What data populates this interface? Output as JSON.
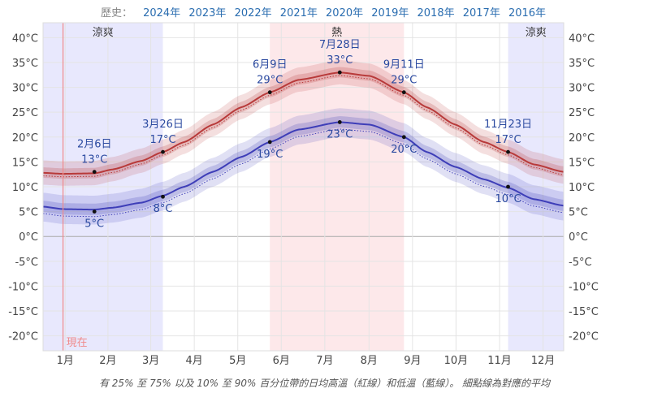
{
  "history": {
    "label": "歷史：",
    "years": [
      "2024年",
      "2023年",
      "2022年",
      "2021年",
      "2020年",
      "2019年",
      "2018年",
      "2017年",
      "2016年"
    ]
  },
  "caption": "有 25% 至 75% 以及 10% 至 90% 百分位帶的日均高溫（紅線）和低溫（藍線）。 細點線為對應的平均",
  "colors": {
    "high": "#b83a3a",
    "low": "#3e3eb8",
    "hot_band": "#fde8ea",
    "cool_band": "#e8e8fd",
    "today": "#f08a8a"
  },
  "chart_data": {
    "type": "line",
    "x_unit": "day_of_year",
    "y_unit": "°C",
    "ylim": [
      -23,
      43
    ],
    "xlim": [
      1,
      366
    ],
    "y_ticks": [
      40,
      35,
      30,
      25,
      20,
      15,
      10,
      5,
      0,
      -5,
      -10,
      -15,
      -20
    ],
    "y_tick_labels": [
      "40°C",
      "35°C",
      "30°C",
      "25°C",
      "20°C",
      "15°C",
      "10°C",
      "5°C",
      "0°C",
      "-5°C",
      "-10°C",
      "-15°C",
      "-20°C"
    ],
    "months": [
      "1月",
      "2月",
      "3月",
      "4月",
      "5月",
      "6月",
      "7月",
      "8月",
      "9月",
      "10月",
      "11月",
      "12月"
    ],
    "grid": true,
    "seasons": [
      {
        "label": "涼爽",
        "kind": "cool",
        "start": 1,
        "end": 85
      },
      {
        "label": "熱",
        "kind": "hot",
        "start": 160,
        "end": 254
      },
      {
        "label": "涼爽",
        "kind": "cool",
        "start": 327,
        "end": 366
      }
    ],
    "today": {
      "label": "現在",
      "day": 15
    },
    "series": [
      {
        "key": "high",
        "days": [
          1,
          15,
          37,
          50,
          70,
          85,
          100,
          120,
          140,
          160,
          180,
          209,
          230,
          254,
          270,
          290,
          310,
          327,
          345,
          366
        ],
        "values": [
          12.8,
          12.6,
          12.7,
          13.5,
          15.2,
          17.0,
          19.0,
          22.5,
          26.0,
          29.0,
          31.5,
          33.0,
          32.3,
          29.0,
          26.0,
          22.5,
          19.0,
          17.0,
          14.5,
          13.0
        ],
        "p25": [
          11.8,
          11.6,
          11.7,
          12.5,
          14.2,
          16.0,
          18.0,
          21.5,
          25.0,
          28.0,
          30.5,
          32.0,
          31.3,
          28.0,
          25.0,
          21.5,
          18.0,
          16.0,
          13.5,
          12.0
        ],
        "p75": [
          13.9,
          13.7,
          13.8,
          14.6,
          16.3,
          18.1,
          20.1,
          23.6,
          27.1,
          30.1,
          32.6,
          34.1,
          33.4,
          30.1,
          27.1,
          23.6,
          20.1,
          18.1,
          15.6,
          14.1
        ],
        "p10": [
          10.4,
          10.2,
          10.3,
          11.1,
          12.8,
          14.6,
          16.6,
          20.1,
          23.6,
          26.6,
          29.1,
          30.6,
          29.9,
          26.6,
          23.6,
          20.1,
          16.6,
          14.6,
          12.1,
          10.6
        ],
        "p90": [
          15.3,
          15.1,
          15.2,
          16.0,
          17.7,
          19.5,
          21.5,
          25.0,
          28.5,
          31.5,
          34.0,
          35.5,
          34.8,
          31.5,
          28.5,
          25.0,
          21.5,
          19.5,
          17.0,
          15.5
        ],
        "avg": [
          12.2,
          12.0,
          12.1,
          12.9,
          14.6,
          16.4,
          18.4,
          21.9,
          25.4,
          28.4,
          30.9,
          32.4,
          31.7,
          28.4,
          25.4,
          21.9,
          18.4,
          16.4,
          13.9,
          12.4
        ]
      },
      {
        "key": "low",
        "days": [
          1,
          15,
          37,
          50,
          70,
          85,
          100,
          120,
          140,
          160,
          180,
          209,
          230,
          254,
          270,
          290,
          310,
          327,
          345,
          366
        ],
        "values": [
          6.0,
          5.5,
          5.4,
          5.8,
          6.8,
          8.2,
          10.0,
          13.0,
          16.0,
          19.0,
          21.5,
          23.0,
          22.5,
          20.0,
          17.0,
          14.0,
          11.5,
          9.8,
          7.5,
          6.2
        ],
        "p25": [
          4.9,
          4.4,
          4.3,
          4.7,
          5.7,
          7.1,
          8.9,
          11.9,
          14.9,
          17.9,
          20.4,
          21.9,
          21.4,
          18.9,
          15.9,
          12.9,
          10.4,
          8.7,
          6.4,
          5.1
        ],
        "p75": [
          7.2,
          6.7,
          6.6,
          7.0,
          8.0,
          9.4,
          11.2,
          14.2,
          17.2,
          20.2,
          22.7,
          24.2,
          23.7,
          21.2,
          18.2,
          15.2,
          12.7,
          11.0,
          8.7,
          7.4
        ],
        "p10": [
          3.0,
          2.5,
          2.4,
          2.8,
          3.8,
          5.2,
          7.0,
          10.0,
          13.0,
          16.0,
          18.5,
          20.0,
          19.5,
          17.0,
          14.0,
          11.0,
          8.5,
          6.8,
          4.5,
          3.2
        ],
        "p90": [
          8.8,
          8.3,
          8.2,
          8.6,
          9.6,
          11.0,
          12.8,
          15.8,
          18.8,
          21.8,
          24.3,
          25.8,
          25.3,
          22.8,
          19.8,
          16.8,
          14.3,
          12.6,
          10.3,
          9.0
        ],
        "avg": [
          4.6,
          4.1,
          4.0,
          4.4,
          5.4,
          6.8,
          8.6,
          11.6,
          14.6,
          17.6,
          20.1,
          21.6,
          21.1,
          18.6,
          15.6,
          12.6,
          10.1,
          8.4,
          6.1,
          4.8
        ]
      }
    ],
    "annotations": [
      {
        "series": "high",
        "day": 37,
        "value": 13,
        "date": "2月6日",
        "text": "13°C"
      },
      {
        "series": "low",
        "day": 37,
        "value": 5,
        "date": "",
        "text": "5°C"
      },
      {
        "series": "high",
        "day": 85,
        "value": 17,
        "date": "3月26日",
        "text": "17°C"
      },
      {
        "series": "low",
        "day": 85,
        "value": 8,
        "date": "",
        "text": "8°C"
      },
      {
        "series": "high",
        "day": 160,
        "value": 29,
        "date": "6月9日",
        "text": "29°C"
      },
      {
        "series": "low",
        "day": 160,
        "value": 19,
        "date": "",
        "text": "19°C"
      },
      {
        "series": "high",
        "day": 209,
        "value": 33,
        "date": "7月28日",
        "text": "33°C"
      },
      {
        "series": "low",
        "day": 209,
        "value": 23,
        "date": "",
        "text": "23°C"
      },
      {
        "series": "high",
        "day": 254,
        "value": 29,
        "date": "9月11日",
        "text": "29°C"
      },
      {
        "series": "low",
        "day": 254,
        "value": 20,
        "date": "",
        "text": "20°C"
      },
      {
        "series": "high",
        "day": 327,
        "value": 17,
        "date": "11月23日",
        "text": "17°C"
      },
      {
        "series": "low",
        "day": 327,
        "value": 10,
        "date": "",
        "text": "10°C"
      }
    ]
  }
}
